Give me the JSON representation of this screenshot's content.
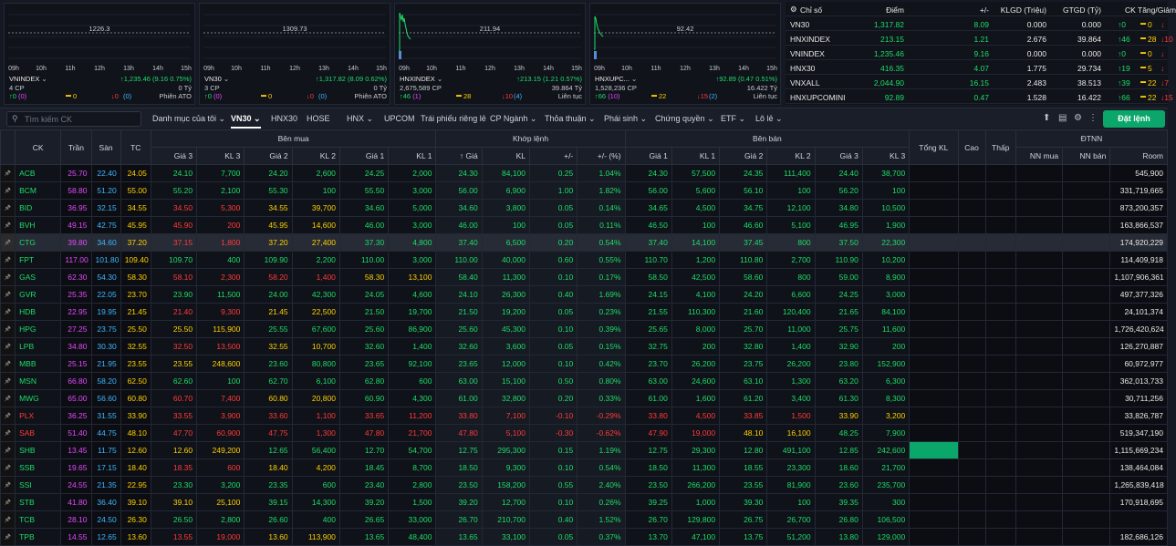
{
  "mini_charts": [
    {
      "ref_value": "1226.3",
      "times": [
        "09h",
        "10h",
        "11h",
        "12h",
        "13h",
        "14h",
        "15h"
      ],
      "name": "VNINDEX",
      "change": "↑1,235.46 (9.16 0.75%)",
      "volume": "4 CP",
      "value": "0 Tỷ",
      "up": "↑0",
      "up_sub": "(0)",
      "ref_count": "0",
      "down": "↓0",
      "down_sub": "(0)",
      "session": "Phiên ATO",
      "accent": "#1ddc6a"
    },
    {
      "ref_value": "1309.73",
      "times": [
        "09h",
        "10h",
        "11h",
        "12h",
        "13h",
        "14h",
        "15h"
      ],
      "name": "VN30",
      "change": "↑1,317.82 (8.09 0.62%)",
      "volume": "3 CP",
      "value": "0 Tỷ",
      "up": "↑0",
      "up_sub": "(0)",
      "ref_count": "0",
      "down": "↓0",
      "down_sub": "(0)",
      "session": "Phiên ATO",
      "accent": "#1ddc6a"
    },
    {
      "ref_value": "211.94",
      "times": [
        "09h",
        "10h",
        "11h",
        "12h",
        "13h",
        "14h",
        "15h"
      ],
      "name": "HNXINDEX",
      "change": "↑213.15 (1.21 0.57%)",
      "volume": "2,675,589 CP",
      "value": "39.864 Tỷ",
      "up": "↑46",
      "up_sub": "(1)",
      "ref_count": "28",
      "down": "↓10",
      "down_sub": "(4)",
      "session": "Liên tục",
      "accent": "#1ddc6a"
    },
    {
      "ref_value": "92.42",
      "times": [
        "09h",
        "10h",
        "11h",
        "12h",
        "13h",
        "14h",
        "15h"
      ],
      "name": "HNXUPC...",
      "change": "↑92.89 (0.47 0.51%)",
      "volume": "1,528,236 CP",
      "value": "16.422 Tỷ",
      "up": "↑66",
      "up_sub": "(10)",
      "ref_count": "22",
      "down": "↓15",
      "down_sub": "(2)",
      "session": "Liên tục",
      "accent": "#1ddc6a"
    }
  ],
  "index_table": {
    "headers": [
      "Chỉ số",
      "Điểm",
      "+/-",
      "KLGD (Triệu)",
      "GTGD (Tỷ)",
      "CK Tăng/Giảm"
    ],
    "rows": [
      {
        "name": "VN30",
        "point": "1,317.82",
        "change": "8.09",
        "klgd": "0.000",
        "gtgd": "0.000",
        "up": "↑0",
        "ref": "0",
        "down": "↓"
      },
      {
        "name": "HNXINDEX",
        "point": "213.15",
        "change": "1.21",
        "klgd": "2.676",
        "gtgd": "39.864",
        "up": "↑46",
        "ref": "28",
        "down": "↓10"
      },
      {
        "name": "VNINDEX",
        "point": "1,235.46",
        "change": "9.16",
        "klgd": "0.000",
        "gtgd": "0.000",
        "up": "↑0",
        "ref": "0",
        "down": "↓"
      },
      {
        "name": "HNX30",
        "point": "416.35",
        "change": "4.07",
        "klgd": "1.775",
        "gtgd": "29.734",
        "up": "↑19",
        "ref": "5",
        "down": "↓"
      },
      {
        "name": "VNXALL",
        "point": "2,044.90",
        "change": "16.15",
        "klgd": "2.483",
        "gtgd": "38.513",
        "up": "↑39",
        "ref": "22",
        "down": "↓7"
      },
      {
        "name": "HNXUPCOMINI",
        "point": "92.89",
        "change": "0.47",
        "klgd": "1.528",
        "gtgd": "16.422",
        "up": "↑66",
        "ref": "22",
        "down": "↓15"
      }
    ]
  },
  "toolbar": {
    "search_placeholder": "Tìm kiếm CK",
    "tabs": [
      "Danh mục của tôi",
      "VN30",
      "HNX30",
      "HOSE",
      "HNX",
      "UPCOM",
      "Trái phiếu riêng lẻ",
      "CP Ngành",
      "Thỏa thuận",
      "Phái sinh",
      "Chứng quyền",
      "ETF",
      "Lô lẻ"
    ],
    "order_button": "Đặt lệnh"
  },
  "board": {
    "headers": {
      "ck": "CK",
      "tran": "Trần",
      "san": "Sàn",
      "tc": "TC",
      "ben_mua": "Bên mua",
      "khop_lenh": "Khớp lệnh",
      "ben_ban": "Bên bán",
      "tong_kl": "Tổng KL",
      "cao": "Cao",
      "thap": "Thấp",
      "dtnn": "ĐTNN",
      "gia3": "Giá 3",
      "kl3": "KL 3",
      "gia2": "Giá 2",
      "kl2": "KL 2",
      "gia1": "Giá 1",
      "kl1": "KL 1",
      "gia": "↑ Giá",
      "kl": "KL",
      "pm": "+/-",
      "pmpct": "+/- (%)",
      "nn_mua": "NN mua",
      "nn_ban": "NN bán",
      "room": "Room"
    },
    "colors": {
      "up": "#1ddc6a",
      "down": "#ff3b3b",
      "ref": "#ffd000",
      "ceil": "#e34aff",
      "floor": "#3fb6ff"
    },
    "rows": [
      {
        "s": "ACB",
        "tr": "25.70",
        "sa": "22.40",
        "tc": "24.05",
        "b": [
          "24.10",
          "7,700",
          "24.20",
          "2,600",
          "24.25",
          "2,000"
        ],
        "m": [
          "24.30",
          "84,100",
          "0.25",
          "1.04%"
        ],
        "a": [
          "24.30",
          "57,500",
          "24.35",
          "111,400",
          "24.40",
          "38,700"
        ],
        "room": "545,900"
      },
      {
        "s": "BCM",
        "tr": "58.80",
        "sa": "51.20",
        "tc": "55.00",
        "b": [
          "55.20",
          "2,100",
          "55.30",
          "100",
          "55.50",
          "3,000"
        ],
        "m": [
          "56.00",
          "6,900",
          "1.00",
          "1.82%"
        ],
        "a": [
          "56.00",
          "5,600",
          "56.10",
          "100",
          "56.20",
          "100"
        ],
        "room": "331,719,665"
      },
      {
        "s": "BID",
        "tr": "36.95",
        "sa": "32.15",
        "tc": "34.55",
        "b": [
          "34.50",
          "5,300",
          "34.55",
          "39,700",
          "34.60",
          "5,000"
        ],
        "m": [
          "34.60",
          "3,800",
          "0.05",
          "0.14%"
        ],
        "a": [
          "34.65",
          "4,500",
          "34.75",
          "12,100",
          "34.80",
          "10,500"
        ],
        "room": "873,200,357"
      },
      {
        "s": "BVH",
        "tr": "49.15",
        "sa": "42.75",
        "tc": "45.95",
        "b": [
          "45.90",
          "200",
          "45.95",
          "14,600",
          "46.00",
          "3,000"
        ],
        "m": [
          "46.00",
          "100",
          "0.05",
          "0.11%"
        ],
        "a": [
          "46.50",
          "100",
          "46.60",
          "5,100",
          "46.95",
          "1,900"
        ],
        "room": "163,866,537"
      },
      {
        "s": "CTG",
        "tr": "39.80",
        "sa": "34.60",
        "tc": "37.20",
        "b": [
          "37.15",
          "1,800",
          "37.20",
          "27,400",
          "37.30",
          "4,800"
        ],
        "m": [
          "37.40",
          "6,500",
          "0.20",
          "0.54%"
        ],
        "a": [
          "37.40",
          "14,100",
          "37.45",
          "800",
          "37.50",
          "22,300"
        ],
        "room": "174,920,229",
        "hl": true
      },
      {
        "s": "FPT",
        "tr": "117.00",
        "sa": "101.80",
        "tc": "109.40",
        "b": [
          "109.70",
          "400",
          "109.90",
          "2,200",
          "110.00",
          "3,000"
        ],
        "m": [
          "110.00",
          "40,000",
          "0.60",
          "0.55%"
        ],
        "a": [
          "110.70",
          "1,200",
          "110.80",
          "2,700",
          "110.90",
          "10,200"
        ],
        "room": "114,409,918"
      },
      {
        "s": "GAS",
        "tr": "62.30",
        "sa": "54.30",
        "tc": "58.30",
        "b": [
          "58.10",
          "2,300",
          "58.20",
          "1,400",
          "58.30",
          "13,100"
        ],
        "m": [
          "58.40",
          "11,300",
          "0.10",
          "0.17%"
        ],
        "a": [
          "58.50",
          "42,500",
          "58.60",
          "800",
          "59.00",
          "8,900"
        ],
        "room": "1,107,906,361"
      },
      {
        "s": "GVR",
        "tr": "25.35",
        "sa": "22.05",
        "tc": "23.70",
        "b": [
          "23.90",
          "11,500",
          "24.00",
          "42,300",
          "24.05",
          "4,600"
        ],
        "m": [
          "24.10",
          "26,300",
          "0.40",
          "1.69%"
        ],
        "a": [
          "24.15",
          "4,100",
          "24.20",
          "6,600",
          "24.25",
          "3,000"
        ],
        "room": "497,377,326"
      },
      {
        "s": "HDB",
        "tr": "22.95",
        "sa": "19.95",
        "tc": "21.45",
        "b": [
          "21.40",
          "9,300",
          "21.45",
          "22,500",
          "21.50",
          "19,700"
        ],
        "m": [
          "21.50",
          "19,200",
          "0.05",
          "0.23%"
        ],
        "a": [
          "21.55",
          "110,300",
          "21.60",
          "120,400",
          "21.65",
          "84,100"
        ],
        "room": "24,101,374"
      },
      {
        "s": "HPG",
        "tr": "27.25",
        "sa": "23.75",
        "tc": "25.50",
        "b": [
          "25.50",
          "115,900",
          "25.55",
          "67,600",
          "25.60",
          "86,900"
        ],
        "m": [
          "25.60",
          "45,300",
          "0.10",
          "0.39%"
        ],
        "a": [
          "25.65",
          "8,000",
          "25.70",
          "11,000",
          "25.75",
          "11,600"
        ],
        "room": "1,726,420,624"
      },
      {
        "s": "LPB",
        "tr": "34.80",
        "sa": "30.30",
        "tc": "32.55",
        "b": [
          "32.50",
          "13,500",
          "32.55",
          "10,700",
          "32.60",
          "1,400"
        ],
        "m": [
          "32.60",
          "3,600",
          "0.05",
          "0.15%"
        ],
        "a": [
          "32.75",
          "200",
          "32.80",
          "1,400",
          "32.90",
          "200"
        ],
        "room": "126,270,887"
      },
      {
        "s": "MBB",
        "tr": "25.15",
        "sa": "21.95",
        "tc": "23.55",
        "b": [
          "23.55",
          "248,600",
          "23.60",
          "80,800",
          "23.65",
          "92,100"
        ],
        "m": [
          "23.65",
          "12,000",
          "0.10",
          "0.42%"
        ],
        "a": [
          "23.70",
          "26,200",
          "23.75",
          "26,200",
          "23.80",
          "152,900"
        ],
        "room": "60,972,977"
      },
      {
        "s": "MSN",
        "tr": "66.80",
        "sa": "58.20",
        "tc": "62.50",
        "b": [
          "62.60",
          "100",
          "62.70",
          "6,100",
          "62.80",
          "600"
        ],
        "m": [
          "63.00",
          "15,100",
          "0.50",
          "0.80%"
        ],
        "a": [
          "63.00",
          "24,600",
          "63.10",
          "1,300",
          "63.20",
          "6,300"
        ],
        "room": "362,013,733"
      },
      {
        "s": "MWG",
        "tr": "65.00",
        "sa": "56.60",
        "tc": "60.80",
        "b": [
          "60.70",
          "7,400",
          "60.80",
          "20,800",
          "60.90",
          "4,300"
        ],
        "m": [
          "61.00",
          "32,800",
          "0.20",
          "0.33%"
        ],
        "a": [
          "61.00",
          "1,600",
          "61.20",
          "3,400",
          "61.30",
          "8,300"
        ],
        "room": "30,711,256"
      },
      {
        "s": "PLX",
        "tr": "36.25",
        "sa": "31.55",
        "tc": "33.90",
        "b": [
          "33.55",
          "3,900",
          "33.60",
          "1,100",
          "33.65",
          "11,200"
        ],
        "m": [
          "33.80",
          "7,100",
          "-0.10",
          "-0.29%"
        ],
        "a": [
          "33.80",
          "4,500",
          "33.85",
          "1,500",
          "33.90",
          "3,200"
        ],
        "room": "33,826,787"
      },
      {
        "s": "SAB",
        "tr": "51.40",
        "sa": "44.75",
        "tc": "48.10",
        "b": [
          "47.70",
          "60,900",
          "47.75",
          "1,300",
          "47.80",
          "21,700"
        ],
        "m": [
          "47.80",
          "5,100",
          "-0.30",
          "-0.62%"
        ],
        "a": [
          "47.90",
          "19,000",
          "48.10",
          "16,100",
          "48.25",
          "7,900"
        ],
        "room": "519,347,190"
      },
      {
        "s": "SHB",
        "tr": "13.45",
        "sa": "11.75",
        "tc": "12.60",
        "b": [
          "12.60",
          "249,200",
          "12.65",
          "56,400",
          "12.70",
          "54,700"
        ],
        "m": [
          "12.75",
          "295,300",
          "0.15",
          "1.19%"
        ],
        "a": [
          "12.75",
          "29,300",
          "12.80",
          "491,100",
          "12.85",
          "242,600"
        ],
        "room": "1,115,669,234"
      },
      {
        "s": "SSB",
        "tr": "19.65",
        "sa": "17.15",
        "tc": "18.40",
        "b": [
          "18.35",
          "600",
          "18.40",
          "4,200",
          "18.45",
          "8,700"
        ],
        "m": [
          "18.50",
          "9,300",
          "0.10",
          "0.54%"
        ],
        "a": [
          "18.50",
          "11,300",
          "18.55",
          "23,300",
          "18.60",
          "21,700"
        ],
        "room": "138,464,084"
      },
      {
        "s": "SSI",
        "tr": "24.55",
        "sa": "21.35",
        "tc": "22.95",
        "b": [
          "23.30",
          "3,200",
          "23.35",
          "600",
          "23.40",
          "2,800"
        ],
        "m": [
          "23.50",
          "158,200",
          "0.55",
          "2.40%"
        ],
        "a": [
          "23.50",
          "266,200",
          "23.55",
          "81,900",
          "23.60",
          "235,700"
        ],
        "room": "1,265,839,418"
      },
      {
        "s": "STB",
        "tr": "41.80",
        "sa": "36.40",
        "tc": "39.10",
        "b": [
          "39.10",
          "25,100",
          "39.15",
          "14,300",
          "39.20",
          "1,500"
        ],
        "m": [
          "39.20",
          "12,700",
          "0.10",
          "0.26%"
        ],
        "a": [
          "39.25",
          "1,000",
          "39.30",
          "100",
          "39.35",
          "300"
        ],
        "room": "170,918,695"
      },
      {
        "s": "TCB",
        "tr": "28.10",
        "sa": "24.50",
        "tc": "26.30",
        "b": [
          "26.50",
          "2,800",
          "26.60",
          "400",
          "26.65",
          "33,000"
        ],
        "m": [
          "26.70",
          "210,700",
          "0.40",
          "1.52%"
        ],
        "a": [
          "26.70",
          "129,800",
          "26.75",
          "26,700",
          "26.80",
          "106,500"
        ],
        "room": ""
      },
      {
        "s": "TPB",
        "tr": "14.55",
        "sa": "12.65",
        "tc": "13.60",
        "b": [
          "13.55",
          "19,000",
          "13.60",
          "113,900",
          "13.65",
          "48,400"
        ],
        "m": [
          "13.65",
          "33,100",
          "0.05",
          "0.37%"
        ],
        "a": [
          "13.70",
          "47,100",
          "13.75",
          "51,200",
          "13.80",
          "129,000"
        ],
        "room": "182,686,126"
      }
    ]
  }
}
